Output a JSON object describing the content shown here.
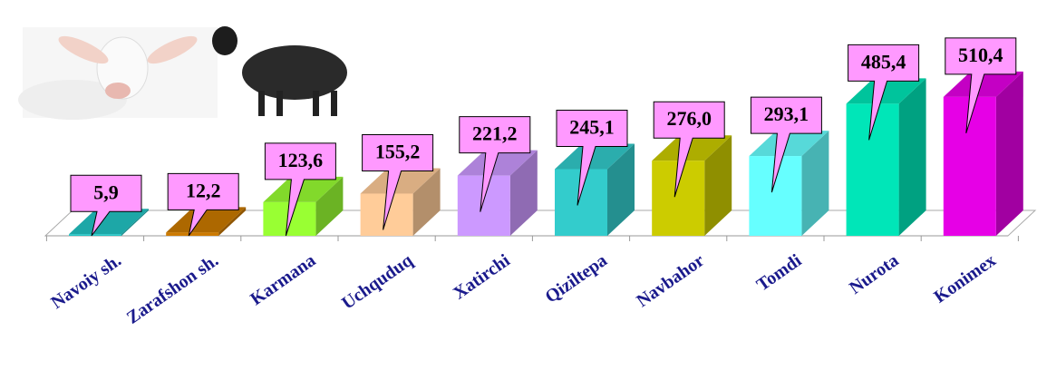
{
  "chart_data": {
    "type": "bar3d",
    "categories": [
      "Navoiy sh.",
      "Zarafshon sh.",
      "Karmana",
      "Uchquduq",
      "Xatirchi",
      "Qiziltepa",
      "Navbahor",
      "Tomdi",
      "Nurota",
      "Konimex"
    ],
    "values": [
      5.9,
      12.2,
      123.6,
      155.2,
      221.2,
      245.1,
      276.0,
      293.1,
      485.4,
      510.4
    ],
    "value_labels": [
      "5,9",
      "12,2",
      "123,6",
      "155,2",
      "221,2",
      "245,1",
      "276,0",
      "293,1",
      "485,4",
      "510,4"
    ],
    "colors": [
      "#22c4c4",
      "#cc7a00",
      "#99ff33",
      "#ffcc99",
      "#cc99ff",
      "#33cccc",
      "#cccc00",
      "#66ffff",
      "#00e6b8",
      "#e600e6"
    ]
  }
}
